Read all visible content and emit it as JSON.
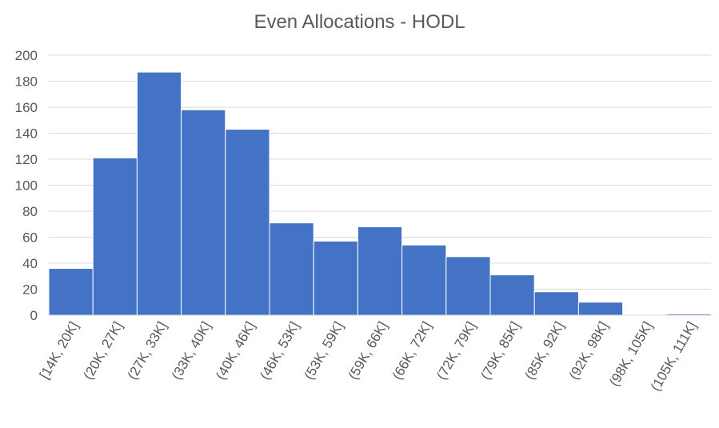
{
  "chart_data": {
    "type": "bar",
    "title": "Even Allocations - HODL",
    "xlabel": "",
    "ylabel": "",
    "categories": [
      "[14K, 20K]",
      "(20K, 27K]",
      "(27K, 33K]",
      "(33K, 40K]",
      "(40K, 46K]",
      "(46K, 53K]",
      "(53K, 59K]",
      "(59K, 66K]",
      "(66K, 72K]",
      "(72K, 79K]",
      "(79K, 85K]",
      "(85K, 92K]",
      "(92K, 98K]",
      "(98K, 105K]",
      "(105K, 111K]"
    ],
    "values": [
      36,
      121,
      187,
      158,
      143,
      71,
      57,
      68,
      54,
      45,
      31,
      18,
      10,
      0,
      1
    ],
    "ylim": [
      0,
      200
    ],
    "yticks": [
      0,
      20,
      40,
      60,
      80,
      100,
      120,
      140,
      160,
      180,
      200
    ],
    "grid": true,
    "bar_color": "#4472C4",
    "grid_color": "#D9D9D9"
  }
}
